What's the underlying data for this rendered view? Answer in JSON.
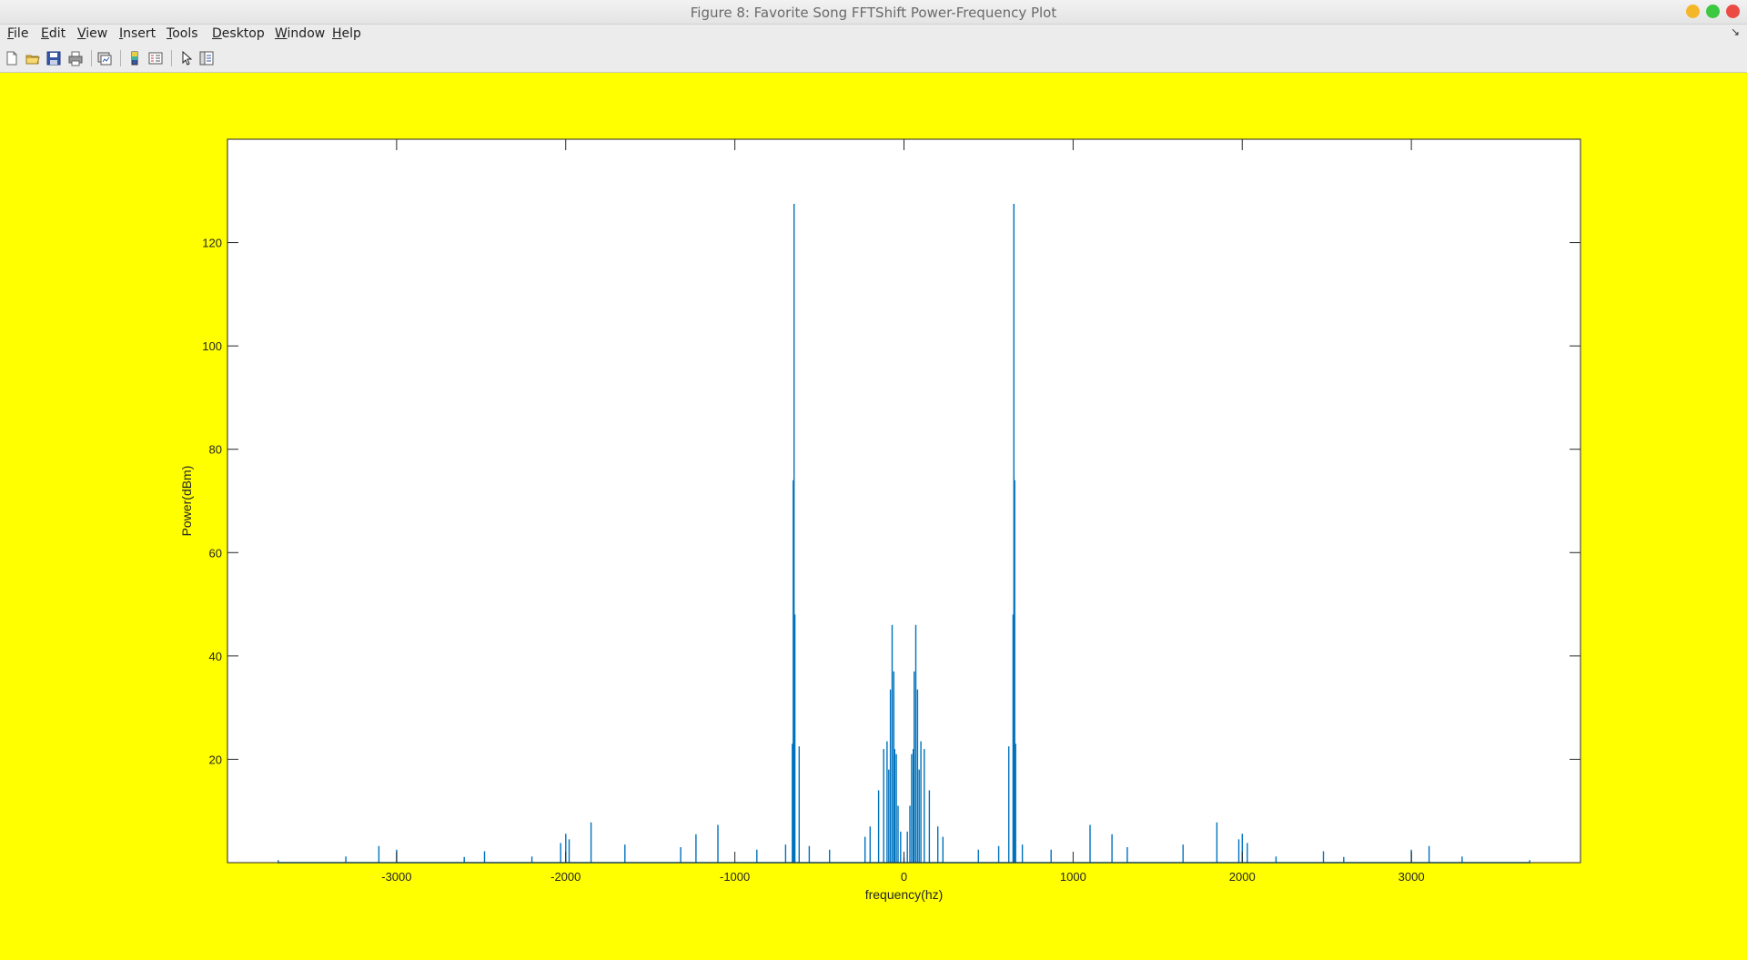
{
  "window": {
    "title": "Figure 8: Favorite Song FFTShift Power-Frequency Plot"
  },
  "menu": {
    "items": [
      "File",
      "Edit",
      "View",
      "Insert",
      "Tools",
      "Desktop",
      "Window",
      "Help"
    ]
  },
  "toolbar": {
    "icons": [
      "new-figure-icon",
      "open-icon",
      "save-icon",
      "print-icon",
      "copy-figure-icon",
      "colorbar-icon",
      "legend-icon",
      "pointer-icon",
      "plot-browser-icon"
    ]
  },
  "colors": {
    "background": "#ffff00",
    "line": "#0072bd",
    "axes_bg": "#ffffff"
  },
  "chart_data": {
    "type": "line",
    "title": "",
    "xlabel": "frequency(hz)",
    "ylabel": "Power(dBm)",
    "xlim": [
      -4000,
      4000
    ],
    "ylim": [
      0,
      140
    ],
    "xticks": [
      -3000,
      -2000,
      -1000,
      0,
      1000,
      2000,
      3000
    ],
    "xtick_labels": [
      "-3000",
      "-2000",
      "-1000",
      "0",
      "1000",
      "2000",
      "3000"
    ],
    "yticks": [
      20,
      40,
      60,
      80,
      100,
      120
    ],
    "ytick_labels": [
      "20",
      "40",
      "60",
      "80",
      "100",
      "120"
    ],
    "grid": false,
    "series": [
      {
        "x": [
          -3700,
          -3300,
          -3105,
          -3000,
          -2600,
          -2480,
          -2200,
          -2030,
          -2000,
          -1980,
          -1850,
          -1650,
          -1320,
          -1230,
          -1100,
          -870,
          -700,
          -660,
          -655,
          -650,
          -645,
          -620,
          -560,
          -440,
          -230,
          -200,
          -150,
          -120,
          -100,
          -90,
          -80,
          -70,
          -60,
          -55,
          -45,
          -35,
          -20,
          0,
          20,
          35,
          45,
          55,
          60,
          70,
          80,
          90,
          100,
          120,
          150,
          200,
          230,
          440,
          560,
          620,
          645,
          650,
          655,
          660,
          700,
          870,
          1100,
          1230,
          1320,
          1650,
          1850,
          1980,
          2000,
          2030,
          2200,
          2480,
          2600,
          3000,
          3105,
          3300,
          3700
        ],
        "y": [
          0.5,
          1.2,
          3.2,
          2.5,
          1.1,
          2.2,
          1.2,
          3.8,
          5.6,
          4.5,
          7.8,
          3.5,
          3,
          5.5,
          7.3,
          2.5,
          3.5,
          23,
          74,
          127.5,
          48,
          22.5,
          3.2,
          2.5,
          5,
          7,
          14,
          22,
          23.5,
          18,
          33.5,
          46,
          37,
          22,
          21,
          11,
          6,
          1,
          6,
          11,
          21,
          22,
          37,
          46,
          33.5,
          18,
          23.5,
          22,
          14,
          7,
          5,
          2.5,
          3.2,
          22.5,
          48,
          127.5,
          74,
          23,
          3.5,
          2.5,
          7.3,
          5.5,
          3,
          3.5,
          7.8,
          4.5,
          5.6,
          3.8,
          1.2,
          2.2,
          1.1,
          2.5,
          3.2,
          1.2,
          0.5
        ]
      }
    ]
  }
}
